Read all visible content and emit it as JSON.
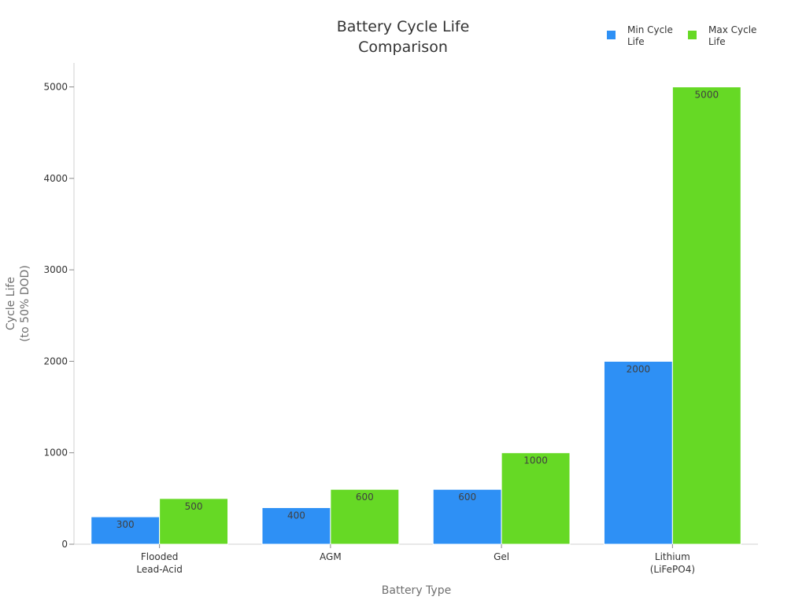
{
  "chart_data": {
    "type": "bar",
    "title": [
      "Battery Cycle Life",
      "Comparison"
    ],
    "xlabel": "Battery Type",
    "ylabel": [
      "Cycle Life",
      "(to 50% DOD)"
    ],
    "categories": [
      [
        "Flooded",
        "Lead-Acid"
      ],
      [
        "AGM"
      ],
      [
        "Gel"
      ],
      [
        "Lithium",
        "(LiFePO4)"
      ]
    ],
    "series": [
      {
        "name": [
          "Min Cycle",
          "Life"
        ],
        "color": "#2e90f5",
        "values": [
          300,
          400,
          600,
          2000
        ]
      },
      {
        "name": [
          "Max Cycle",
          "Life"
        ],
        "color": "#66d925",
        "values": [
          500,
          600,
          1000,
          5000
        ]
      }
    ],
    "ylim": [
      0,
      5000
    ],
    "yticks": [
      "0",
      "1000",
      "2000",
      "3000",
      "4000",
      "5000"
    ],
    "grid": false,
    "legend_position": "top-right",
    "data_labels": true
  }
}
